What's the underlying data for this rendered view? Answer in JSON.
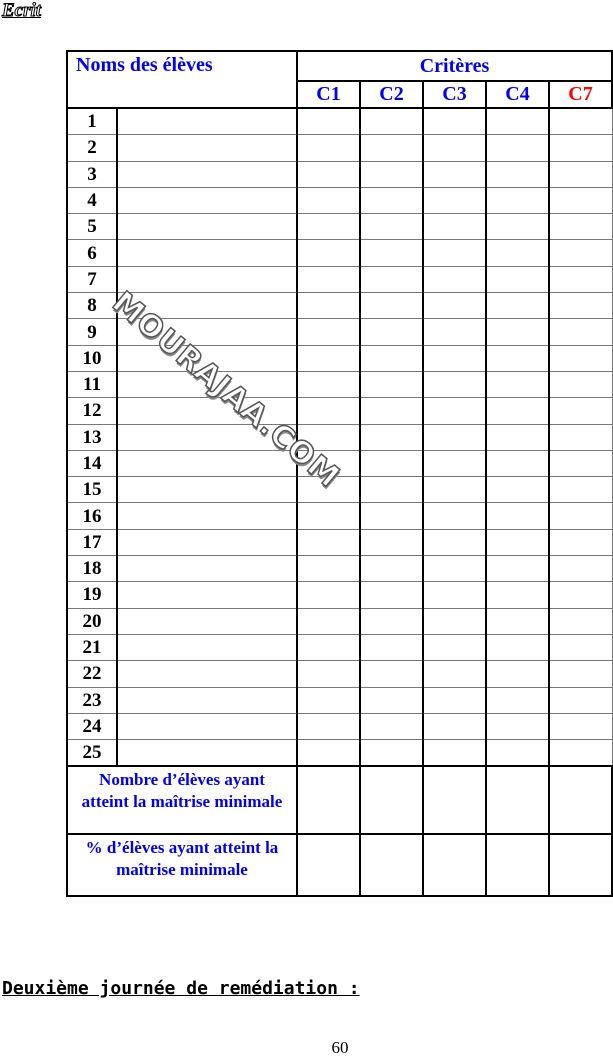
{
  "section_title": "Ecrit",
  "table": {
    "names_header": "Noms des élèves",
    "criteria_header": "Critères",
    "criteria": [
      {
        "label": "C1",
        "color": "#0000ee"
      },
      {
        "label": "C2",
        "color": "#0000ee"
      },
      {
        "label": "C3",
        "color": "#0000ee"
      },
      {
        "label": "C4",
        "color": "#0000ee"
      },
      {
        "label": "C7",
        "color": "#ff0000"
      }
    ],
    "rows": [
      "1",
      "2",
      "3",
      "4",
      "5",
      "6",
      "7",
      "8",
      "9",
      "10",
      "11",
      "12",
      "13",
      "14",
      "15",
      "16",
      "17",
      "18",
      "19",
      "20",
      "21",
      "22",
      "23",
      "24",
      "25"
    ],
    "footer_count": "Nombre d’élèves ayant atteint la maîtrise minimale",
    "footer_percent": "% d’élèves ayant atteint la maîtrise minimale"
  },
  "watermark": "MOURAJAA.COM",
  "next_heading": "Deuxième journée de remédiation :",
  "page_number": "60"
}
